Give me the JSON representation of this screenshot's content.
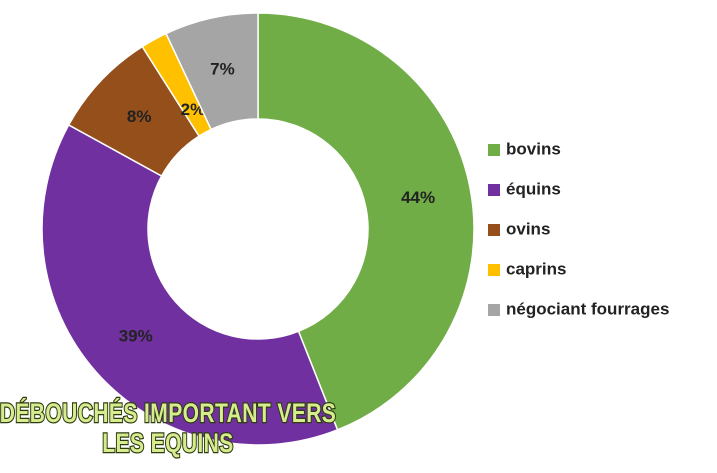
{
  "chart_data": {
    "type": "donut",
    "categories": [
      "bovins",
      "équins",
      "ovins",
      "caprins",
      "négociant fourrages"
    ],
    "values": [
      44,
      39,
      8,
      2,
      7
    ],
    "value_labels": [
      "44%",
      "39%",
      "8%",
      "2%",
      "7%"
    ],
    "colors": [
      "#70ad47",
      "#7030a0",
      "#954f1b",
      "#ffc000",
      "#a5a5a5"
    ],
    "legend": "right",
    "annotation": [
      "DÉBOUCHÉS IMPORTANT VERS",
      "LES EQUINS"
    ]
  }
}
